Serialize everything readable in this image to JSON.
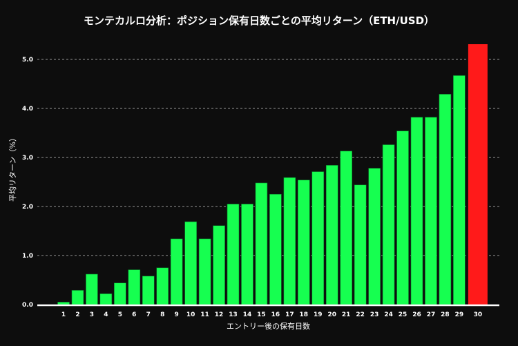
{
  "chart_data": {
    "type": "bar",
    "title": "モンテカルロ分析：ポジション保有日数ごとの平均リターン（ETH/USD）",
    "xlabel": "エントリー後の保有日数",
    "ylabel": "平均リターン（%）",
    "categories": [
      "1",
      "2",
      "3",
      "4",
      "5",
      "6",
      "7",
      "8",
      "9",
      "10",
      "11",
      "12",
      "13",
      "14",
      "15",
      "16",
      "17",
      "18",
      "19",
      "20",
      "21",
      "22",
      "23",
      "24",
      "25",
      "26",
      "27",
      "28",
      "29",
      "30"
    ],
    "values": [
      0.05,
      0.29,
      0.62,
      0.22,
      0.44,
      0.71,
      0.58,
      0.75,
      1.34,
      1.69,
      1.34,
      1.61,
      2.05,
      2.05,
      2.48,
      2.25,
      2.59,
      2.54,
      2.71,
      2.84,
      3.13,
      2.44,
      2.78,
      3.26,
      3.54,
      3.82,
      3.82,
      4.29,
      4.67,
      5.31
    ],
    "ylim": [
      0,
      5.0
    ],
    "yticks": [
      "0.0",
      "1.0",
      "2.0",
      "3.0",
      "4.0",
      "5.0"
    ],
    "grid": "horizontal dashed",
    "colors": {
      "bar": "#16ff50",
      "highlight": "#ff1a1a",
      "highlight_category": "30",
      "background": "#0d0d0d",
      "grid": "#bbbbbb"
    }
  }
}
